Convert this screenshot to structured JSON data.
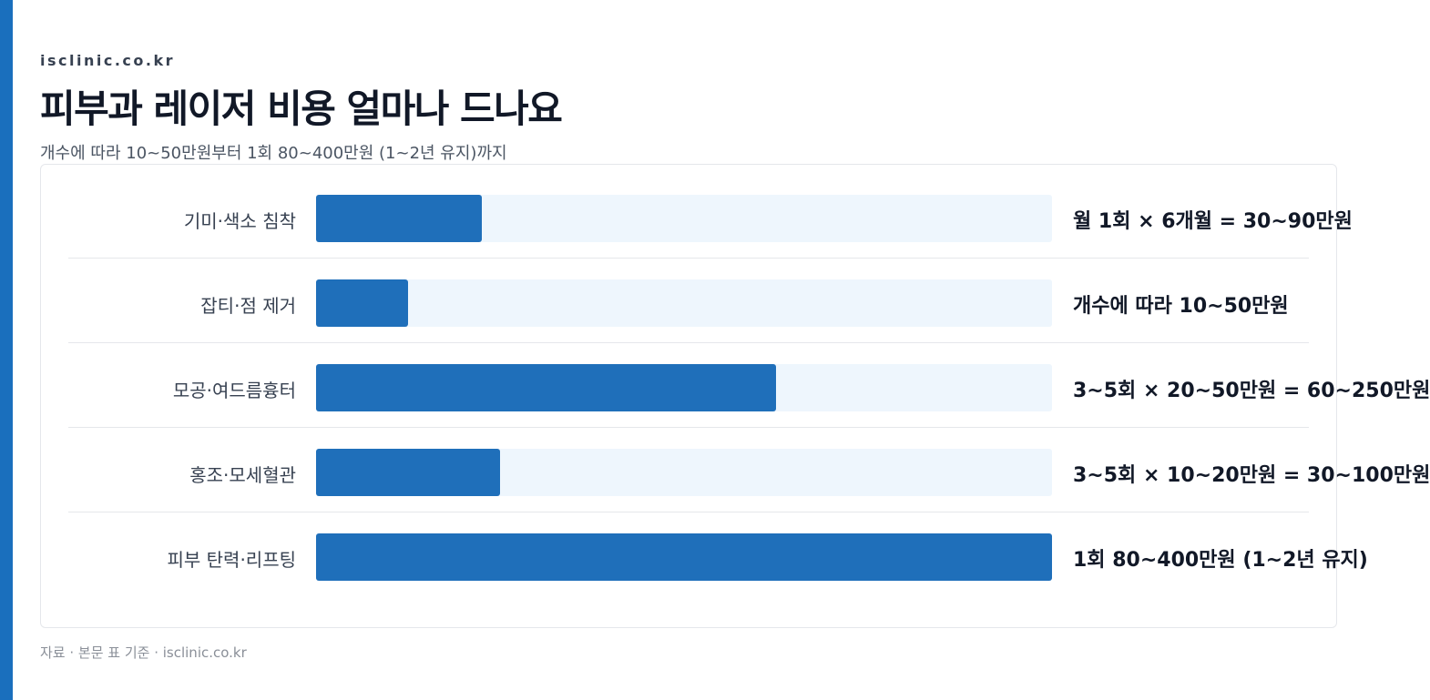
{
  "header": {
    "site": "isclinic.co.kr",
    "title": "피부과 레이저 비용 얼마나 드나요",
    "subtitle": "개수에 따라 10~50만원부터 1회 80~400만원 (1~2년 유지)까지"
  },
  "chart_data": {
    "type": "bar",
    "orientation": "horizontal",
    "categories": [
      "기미·색소 침착",
      "잡티·점 제거",
      "모공·여드름흉터",
      "홍조·모세혈관",
      "피부 탄력·리프팅"
    ],
    "values": [
      90,
      50,
      250,
      100,
      400
    ],
    "value_labels": [
      "월 1회 × 6개월 = 30~90만원",
      "개수에 따라 10~50만원",
      "3~5회 × 20~50만원 = 60~250만원",
      "3~5회 × 10~20만원 = 30~100만원",
      "1회 80~400만원 (1~2년 유지)"
    ],
    "xlim": [
      0,
      400
    ],
    "color": "#1f6fba",
    "track_color": "#eef6fd"
  },
  "footer": {
    "source": "자료 · 본문 표 기준 · isclinic.co.kr"
  }
}
